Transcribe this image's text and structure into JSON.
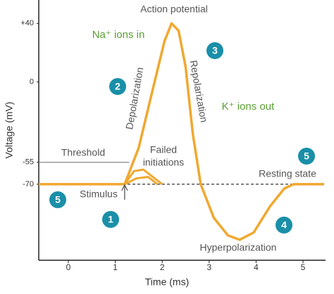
{
  "chart_data": {
    "type": "line",
    "xlabel": "Time (ms)",
    "ylabel": "Voltage (mV)",
    "xlim": [
      -0.63,
      5.45
    ],
    "xticks": [
      0,
      1,
      2,
      3,
      4,
      5
    ],
    "ylim": [
      -122,
      56
    ],
    "yticks": [
      {
        "value": 40,
        "label": "+40"
      },
      0,
      -55,
      -70
    ],
    "series": [
      {
        "color": "#f0a830",
        "x": [
          -0.63,
          1.2,
          1.5,
          1.8,
          2.05,
          2.2,
          2.35,
          2.5,
          2.65,
          2.82,
          3.1,
          3.4,
          3.65,
          3.95,
          4.3,
          4.6,
          4.8,
          5.45
        ],
        "values": [
          -70,
          -70,
          -45,
          -5,
          28,
          40,
          35,
          10,
          -35,
          -70,
          -93,
          -105,
          -108,
          -103,
          -85,
          -73,
          -70,
          -70
        ]
      },
      {
        "color": "#f0a830",
        "x": [
          1.2,
          1.4,
          1.6,
          1.8,
          2.0
        ],
        "values": [
          -70,
          -61,
          -60,
          -65,
          -70
        ]
      },
      {
        "color": "#f0a830",
        "x": [
          1.2,
          1.45,
          1.7,
          1.9
        ],
        "values": [
          -70,
          -66,
          -65,
          -70
        ]
      }
    ],
    "annotations": [
      "Action potential",
      "Na⁺ ions in",
      "K⁺ ions out",
      "Threshold",
      "Failed",
      "initiations",
      "Resting state",
      "Stimulus",
      "Hyperpolarization",
      "Depolarization",
      "Repolarization"
    ],
    "badges": [
      "2",
      "3",
      "5",
      "5",
      "1",
      "4"
    ]
  }
}
